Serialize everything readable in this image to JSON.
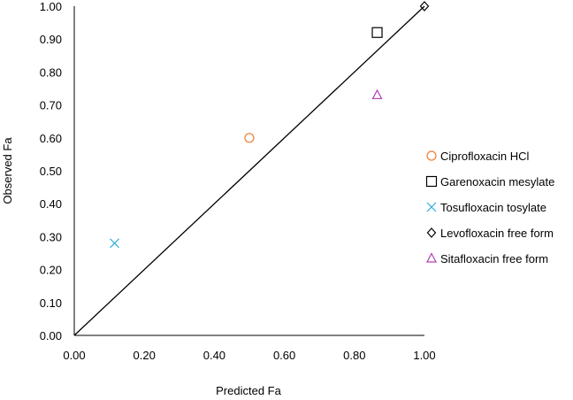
{
  "chart_data": {
    "type": "scatter",
    "title": "",
    "xlabel": "Predicted Fa",
    "ylabel": "Observed Fa",
    "xlim": [
      0,
      1
    ],
    "ylim": [
      0,
      1
    ],
    "x_ticks": [
      "0.00",
      "0.20",
      "0.40",
      "0.60",
      "0.80",
      "1.00"
    ],
    "y_ticks": [
      "0.00",
      "0.10",
      "0.20",
      "0.30",
      "0.40",
      "0.50",
      "0.60",
      "0.70",
      "0.80",
      "0.90",
      "1.00"
    ],
    "grid": false,
    "legend_position": "right",
    "reference_line": {
      "type": "identity",
      "from": [
        0,
        0
      ],
      "to": [
        1,
        1
      ],
      "color": "#000000"
    },
    "series": [
      {
        "name": "Ciprofloxacin HCl",
        "marker": "circle",
        "color": "#ed7d31",
        "x": 0.5,
        "y": 0.6
      },
      {
        "name": "Garenoxacin mesylate",
        "marker": "square",
        "color": "#000000",
        "x": 0.865,
        "y": 0.92
      },
      {
        "name": "Tosufloxacin tosylate",
        "marker": "x",
        "color": "#2eaedb",
        "x": 0.115,
        "y": 0.28
      },
      {
        "name": "Levofloxacin free form",
        "marker": "diamond",
        "color": "#000000",
        "x": 1.0,
        "y": 1.0
      },
      {
        "name": "Sitafloxacin free form",
        "marker": "triangle",
        "color": "#b540b5",
        "x": 0.865,
        "y": 0.73
      }
    ]
  }
}
